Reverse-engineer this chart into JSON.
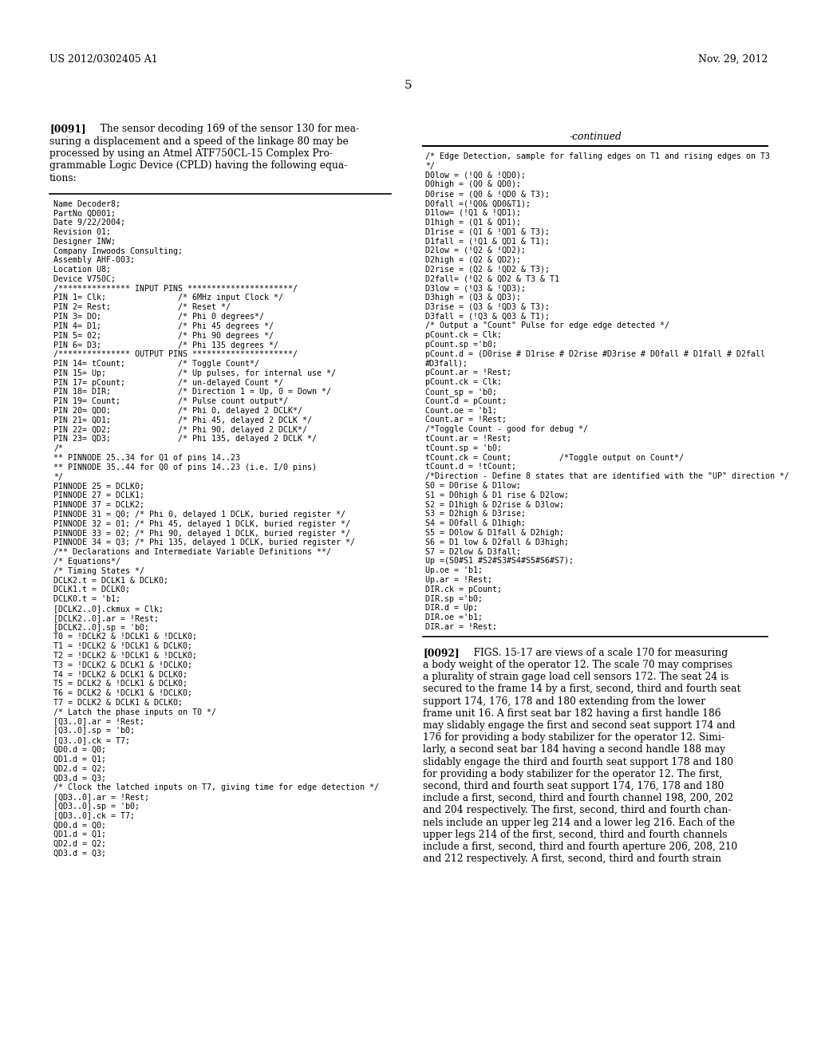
{
  "background_color": "#ffffff",
  "header_left": "US 2012/0302405 A1",
  "header_right": "Nov. 29, 2012",
  "page_number": "5",
  "paragraph_0091_bold": "[0091]",
  "paragraph_0091_rest": "   The sensor decoding 169 of the sensor 130 for mea-\nsuring a displacement and a speed of the linkage 80 may be\nprocessed by using an Atmel ATF750CL-15 Complex Pro-\ngrammable Logic Device (CPLD) having the following equa-\ntions:",
  "continued_label": "-continued",
  "left_code_lines": [
    "Name Decoder8;",
    "PartNo QD001;",
    "Date 9/22/2004;",
    "Revision 01;",
    "Designer INW;",
    "Company Inwoods Consulting;",
    "Assembly AHF-003;",
    "Location U8;",
    "Device V750C;",
    "/*************** INPUT PINS **********************/",
    "PIN 1= Clk;               /* 6MHz input Clock */",
    "PIN 2= Rest;              /* Reset */",
    "PIN 3= DO;                /* Phi 0 degrees*/",
    "PIN 4= D1;                /* Phi 45 degrees */",
    "PIN 5= 02;                /* Phi 90 degrees */",
    "PIN 6= D3;                /* Phi 135 degrees */",
    "/*************** OUTPUT PINS *********************/",
    "PIN 14= tCount;           /* Toggle Count*/",
    "PIN 15= Up;               /* Up pulses, for internal use */",
    "PIN 17= pCount;           /* un-delayed Count */",
    "PIN 18= DIR;              /* Direction 1 = Up, 0 = Down */",
    "PIN 19= Count;            /* Pulse count output*/",
    "PIN 20= QD0;              /* Phi 0, delayed 2 DCLK*/",
    "PIN 21= QD1;              /* Phi 45, delayed 2 DCLK */",
    "PIN 22= QD2;              /* Phi 90, delayed 2 DCLK*/",
    "PIN 23= QD3;              /* Phi 135, delayed 2 DCLK */",
    "/*",
    "** PINNODE 25..34 for Q1 of pins 14..23",
    "** PINNODE 35..44 for Q0 of pins 14..23 (i.e. I/0 pins)",
    "*/",
    "PINNODE 25 = DCLK0;",
    "PINNODE 27 = DCLK1;",
    "PINNODE 37 = DCLK2;",
    "PINNODE 31 = Q0; /* Phi 0, delayed 1 DCLK, buried register */",
    "PINNODE 32 = 01; /* Phi 45, delayed 1 DCLK, buried register */",
    "PINNODE 33 = 02; /* Phi 90, delayed 1 DCLK, buried register */",
    "PINNODE 34 = Q3; /* Phi 135, delayed 1 DCLK, buried register */",
    "/** Declarations and Intermediate Variable Definitions **/",
    "/* Equations*/",
    "/* Timing States */",
    "DCLK2.t = DCLK1 & DCLK0;",
    "DCLK1.t = DCLK0;",
    "DCLK0.t = 'b1;",
    "[DCLK2..0].ckmux = Clk;",
    "[DCLK2..0].ar = !Rest;",
    "[DCLK2..0].sp = 'b0;",
    "T0 = !DCLK2 & !DCLK1 & !DCLK0;",
    "T1 = !DCLK2 & !DCLK1 & DCLK0;",
    "T2 = !DCLK2 & !DCLK1 & !DCLK0;",
    "T3 = !DCLK2 & DCLK1 & !DCLK0;",
    "T4 = !DCLK2 & DCLK1 & DCLK0;",
    "T5 = DCLK2 & !DCLK1 & DCLK0;",
    "T6 = DCLK2 & !DCLK1 & !DCLK0;",
    "T7 = DCLK2 & DCLK1 & DCLK0;",
    "/* Latch the phase inputs on T0 */",
    "[Q3..0].ar = !Rest;",
    "[Q3..0].sp = 'b0;",
    "[Q3..0].ck = T7;",
    "QD0.d = Q0;",
    "QD1.d = Q1;",
    "QD2.d = Q2;",
    "QD3.d = Q3;",
    "/* Clock the latched inputs on T7, giving time for edge detection */",
    "[QD3..0].ar = !Rest;",
    "[QD3..0].sp = 'b0;",
    "[QD3..0].ck = T7;",
    "QD0.d = Q0;",
    "QD1.d = Q1;",
    "QD2.d = Q2;",
    "QD3.d = Q3;"
  ],
  "right_code_lines": [
    "/* Edge Detection, sample for falling edges on T1 and rising edges on T3",
    "*/",
    "D0low = (!Q0 & !QD0);",
    "D0high = (Q0 & QD0);",
    "D0rise = (Q0 & !QD0 & T3);",
    "D0fall =(!Q0& QD0&T1);",
    "D1low= (!Q1 & !QD1);",
    "D1high = (Q1 & QD1);",
    "D1rise = (Q1 & !QD1 & T3);",
    "D1fall = (!Q1 & QD1 & T1);",
    "D2low = (!Q2 & !QD2);",
    "D2high = (Q2 & QD2);",
    "D2rise = (Q2 & !QD2 & T3);",
    "D2fall= (!Q2 & QD2 & T3 & T1",
    "D3low = (!Q3 & !QD3);",
    "D3high = (Q3 & QD3);",
    "D3rise = (Q3 & !QD3 & T3);",
    "D3fall = (!Q3 & Q03 & T1);",
    "/* Output a \"Count\" Pulse for edge edge detected */",
    "pCount.ck = Clk;",
    "pCount.sp ='b0;",
    "pCount.d = (D0rise # D1rise # D2rise #D3rise # D0fall # D1fall # D2fall",
    "#D3fall);",
    "pCount.ar = !Rest;",
    "pCount.ck = Clk;",
    "Count_sp = 'b0;",
    "Count.d = pCount;",
    "Count.oe = 'b1;",
    "Count.ar = !Rest;",
    "/*Toggle Count - good for debug */",
    "tCount.ar = !Rest;",
    "tCount.sp = 'b0;",
    "tCount.ck = Count;          /*Toggle output on Count*/",
    "tCount.d = !tCount;",
    "/*Direction - Define 8 states that are identified with the \"UP\" direction */",
    "S0 = D0rise & D1low;",
    "S1 = D0high & D1 rise & D2low;",
    "S2 = D1high & D2rise & D3low;",
    "S3 = D2high & D3rise;",
    "S4 = D0fall & D1high;",
    "S5 = D0low & D1fall & D2high;",
    "S6 = D1 low & D2fall & D3high;",
    "S7 = D2low & D3fall;",
    "Up =(S0#S1 #S2#S3#S4#S5#S6#S7);",
    "Up.oe = 'b1;",
    "Up.ar = !Rest;",
    "DIR.ck = pCount;",
    "DIR.sp ='b0;",
    "DIR.d = Up;",
    "DIR.oe ='b1;",
    "DIR.ar = !Rest;"
  ],
  "paragraph_0092_bold": "[0092]",
  "paragraph_0092_rest": "   FIGS. 15-17 are views of a scale 170 for measuring\na body weight of the operator 12. The scale 70 may comprises\na plurality of strain gage load cell sensors 172. The seat 24 is\nsecured to the frame 14 by a first, second, third and fourth seat\nsupport 174, 176, 178 and 180 extending from the lower\nframe unit 16. A first seat bar 182 having a first handle 186\nmay slidably engage the first and second seat support 174 and\n176 for providing a body stabilizer for the operator 12. Simi-\nlarly, a second seat bar 184 having a second handle 188 may\nslidably engage the third and fourth seat support 178 and 180\nfor providing a body stabilizer for the operator 12. The first,\nsecond, third and fourth seat support 174, 176, 178 and 180\ninclude a first, second, third and fourth channel 198, 200, 202\nand 204 respectively. The first, second, third and fourth chan-\nnels include an upper leg 214 and a lower leg 216. Each of the\nupper legs 214 of the first, second, third and fourth channels\ninclude a first, second, third and fourth aperture 206, 208, 210\nand 212 respectively. A first, second, third and fourth strain"
}
